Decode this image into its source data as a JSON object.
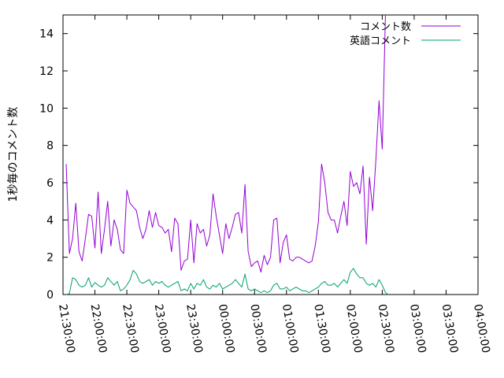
{
  "chart_data": {
    "type": "line",
    "title": "",
    "xlabel": "",
    "ylabel": "1秒毎のコメント数",
    "ylim": [
      0,
      15
    ],
    "xlim": [
      "21:30:00",
      "04:00:00"
    ],
    "x_ticks": [
      "21:30:00",
      "22:00:00",
      "22:30:00",
      "23:00:00",
      "23:30:00",
      "00:00:00",
      "00:30:00",
      "01:00:00",
      "01:30:00",
      "02:00:00",
      "02:30:00",
      "03:00:00",
      "03:30:00",
      "04:00:00"
    ],
    "y_ticks": [
      "0",
      "2",
      "4",
      "6",
      "8",
      "10",
      "12",
      "14"
    ],
    "grid": false,
    "legend_position": "top-right",
    "x_time_step_minutes": 3,
    "series": [
      {
        "name": "コメント数",
        "color": "#9400d3",
        "x_start": "21:33:00",
        "values": [
          7.0,
          2.2,
          3.0,
          4.9,
          2.3,
          1.8,
          3.0,
          4.3,
          4.2,
          2.5,
          5.5,
          2.2,
          3.5,
          5.0,
          2.6,
          4.0,
          3.5,
          2.4,
          2.2,
          5.6,
          4.9,
          4.7,
          4.5,
          3.6,
          3.0,
          3.5,
          4.5,
          3.6,
          4.4,
          3.7,
          3.6,
          3.3,
          3.5,
          2.3,
          4.1,
          3.8,
          1.3,
          1.8,
          1.9,
          4.0,
          1.7,
          3.8,
          3.3,
          3.5,
          2.6,
          3.2,
          5.4,
          4.2,
          3.2,
          2.2,
          3.8,
          3.0,
          3.6,
          4.3,
          4.4,
          3.3,
          5.9,
          2.3,
          1.5,
          1.7,
          1.8,
          1.2,
          2.1,
          1.6,
          2.0,
          4.0,
          4.1,
          1.7,
          2.8,
          3.2,
          1.9,
          1.8,
          2.0,
          2.0,
          1.9,
          1.8,
          1.7,
          1.8,
          2.6,
          3.9,
          7.0,
          6.0,
          4.4,
          4.0,
          4.0,
          3.3,
          4.2,
          5.0,
          3.7,
          6.6,
          5.8,
          6.0,
          5.4,
          6.9,
          2.7,
          6.3,
          4.5,
          7.2,
          10.4,
          7.8,
          15.0
        ]
      },
      {
        "name": "英語コメント",
        "color": "#009e73",
        "x_start": "21:33:00",
        "values": [
          0.0,
          0.05,
          0.9,
          0.8,
          0.5,
          0.4,
          0.5,
          0.9,
          0.4,
          0.65,
          0.5,
          0.4,
          0.5,
          0.9,
          0.7,
          0.5,
          0.7,
          0.2,
          0.3,
          0.5,
          0.8,
          1.3,
          1.1,
          0.7,
          0.6,
          0.7,
          0.8,
          0.5,
          0.7,
          0.6,
          0.7,
          0.5,
          0.4,
          0.5,
          0.6,
          0.7,
          0.2,
          0.3,
          0.2,
          0.6,
          0.3,
          0.6,
          0.5,
          0.8,
          0.4,
          0.3,
          0.5,
          0.4,
          0.6,
          0.3,
          0.4,
          0.5,
          0.6,
          0.8,
          0.6,
          0.4,
          1.1,
          0.3,
          0.2,
          0.3,
          0.2,
          0.1,
          0.2,
          0.1,
          0.2,
          0.5,
          0.6,
          0.3,
          0.3,
          0.4,
          0.2,
          0.3,
          0.4,
          0.3,
          0.2,
          0.2,
          0.1,
          0.2,
          0.3,
          0.4,
          0.6,
          0.7,
          0.5,
          0.5,
          0.6,
          0.4,
          0.6,
          0.8,
          0.6,
          1.2,
          1.4,
          1.1,
          0.9,
          0.9,
          0.6,
          0.5,
          0.6,
          0.4,
          0.8,
          0.5,
          0.1,
          0.0
        ]
      }
    ]
  }
}
